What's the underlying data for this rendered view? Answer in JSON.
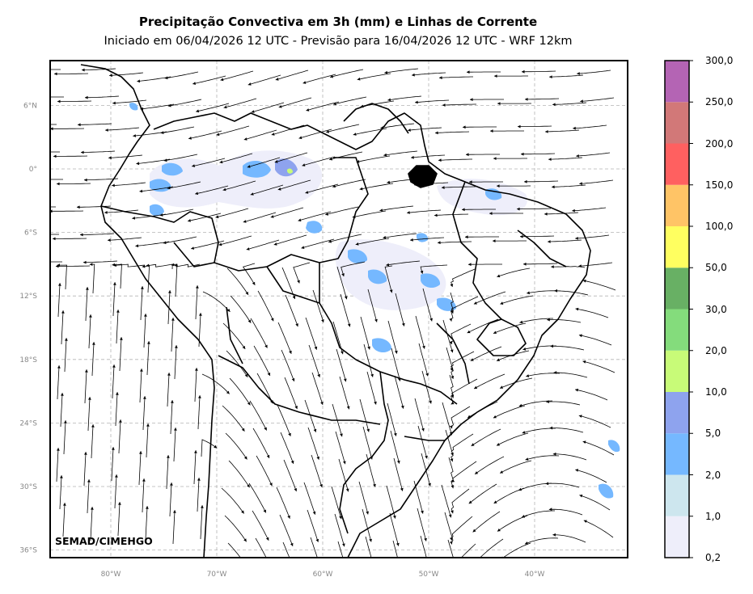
{
  "title": "Precipitação Convectiva em 3h (mm) e Linhas de Corrente",
  "subtitle": "Iniciado em 06/04/2026 12 UTC - Previsão para 16/04/2026 12 UTC - WRF 12km",
  "credit": "SEMAD/CIMEHGO",
  "axes": {
    "lon_ticks": [
      {
        "value": -80,
        "label": "80°W"
      },
      {
        "value": -70,
        "label": "70°W"
      },
      {
        "value": -60,
        "label": "60°W"
      },
      {
        "value": -50,
        "label": "50°W"
      },
      {
        "value": -40,
        "label": "40°W"
      }
    ],
    "lat_ticks": [
      {
        "value": 6,
        "label": "6°N"
      },
      {
        "value": 0,
        "label": "0°"
      },
      {
        "value": -6,
        "label": "6°S"
      },
      {
        "value": -12,
        "label": "12°S"
      },
      {
        "value": -18,
        "label": "18°S"
      },
      {
        "value": -24,
        "label": "24°S"
      },
      {
        "value": -30,
        "label": "30°S"
      },
      {
        "value": -36,
        "label": "36°S"
      }
    ],
    "gridlines": true
  },
  "colorbar": {
    "levels": [
      "0,2",
      "1,0",
      "2,0",
      "5,0",
      "10,0",
      "20,0",
      "30,0",
      "50,0",
      "100,0",
      "150,0",
      "200,0",
      "250,0",
      "300,0"
    ],
    "colors": [
      "#eeeefa",
      "#cde6ee",
      "#75b8ff",
      "#8ea3ee",
      "#c8fb78",
      "#84dc7c",
      "#68b064",
      "#ffff60",
      "#ffc466",
      "#ff6060",
      "#d27878",
      "#b464b4"
    ]
  }
}
